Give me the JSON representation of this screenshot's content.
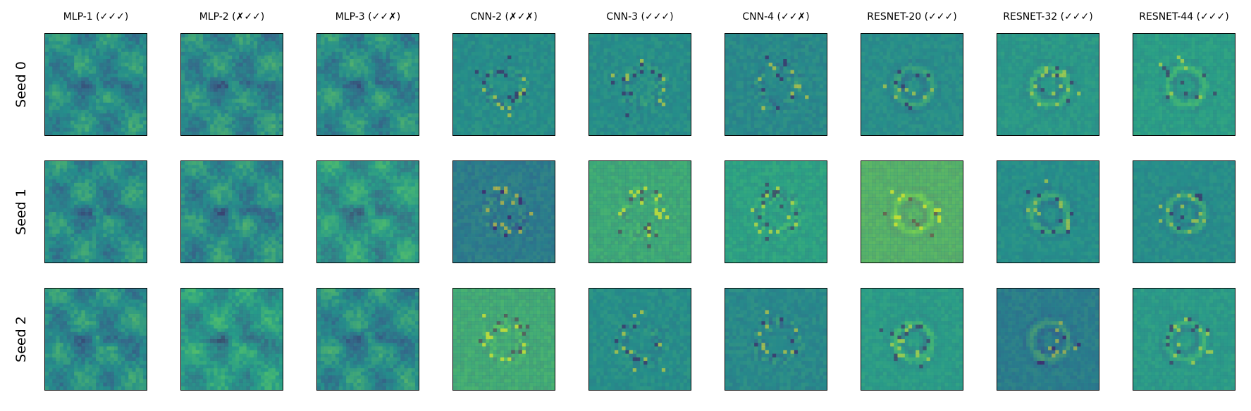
{
  "columns": [
    {
      "label": "MLP-1 (✓✓✓)",
      "family": "mlp"
    },
    {
      "label": "MLP-2 (✗✓✓)",
      "family": "mlp"
    },
    {
      "label": "MLP-3 (✓✓✗)",
      "family": "mlp"
    },
    {
      "label": "CNN-2 (✗✓✗)",
      "family": "cnn"
    },
    {
      "label": "CNN-3 (✓✓✓)",
      "family": "cnn"
    },
    {
      "label": "CNN-4 (✓✓✗)",
      "family": "cnn"
    },
    {
      "label": "RESNET-20 (✓✓✓)",
      "family": "resnet"
    },
    {
      "label": "RESNET-32 (✓✓✓)",
      "family": "resnet"
    },
    {
      "label": "RESNET-44 (✓✓✓)",
      "family": "resnet"
    }
  ],
  "rows": [
    {
      "label": "Seed 0"
    },
    {
      "label": "Seed 1"
    },
    {
      "label": "Seed 2"
    }
  ],
  "colormap": [
    "#440154",
    "#3b528b",
    "#21918c",
    "#5ec962",
    "#fde725"
  ],
  "panel_backgrounds": [
    [
      "#2c8a8a",
      "#2f8789",
      "#2e8a89",
      "#2a8a87",
      "#2b8a87",
      "#2f7f8b",
      "#2f8b89",
      "#34a085",
      "#35ad80"
    ],
    [
      "#2c8a8a",
      "#2d8a8a",
      "#34a584",
      "#365f8c",
      "#5fc660",
      "#3bb57b",
      "#98d83e",
      "#2b8c8a",
      "#2e8a89"
    ],
    [
      "#2c8a8a",
      "#2ea686",
      "#2c8a8a",
      "#6cc95c",
      "#2b8a87",
      "#2f7f8b",
      "#35a983",
      "#33638c",
      "#36a685"
    ]
  ]
}
